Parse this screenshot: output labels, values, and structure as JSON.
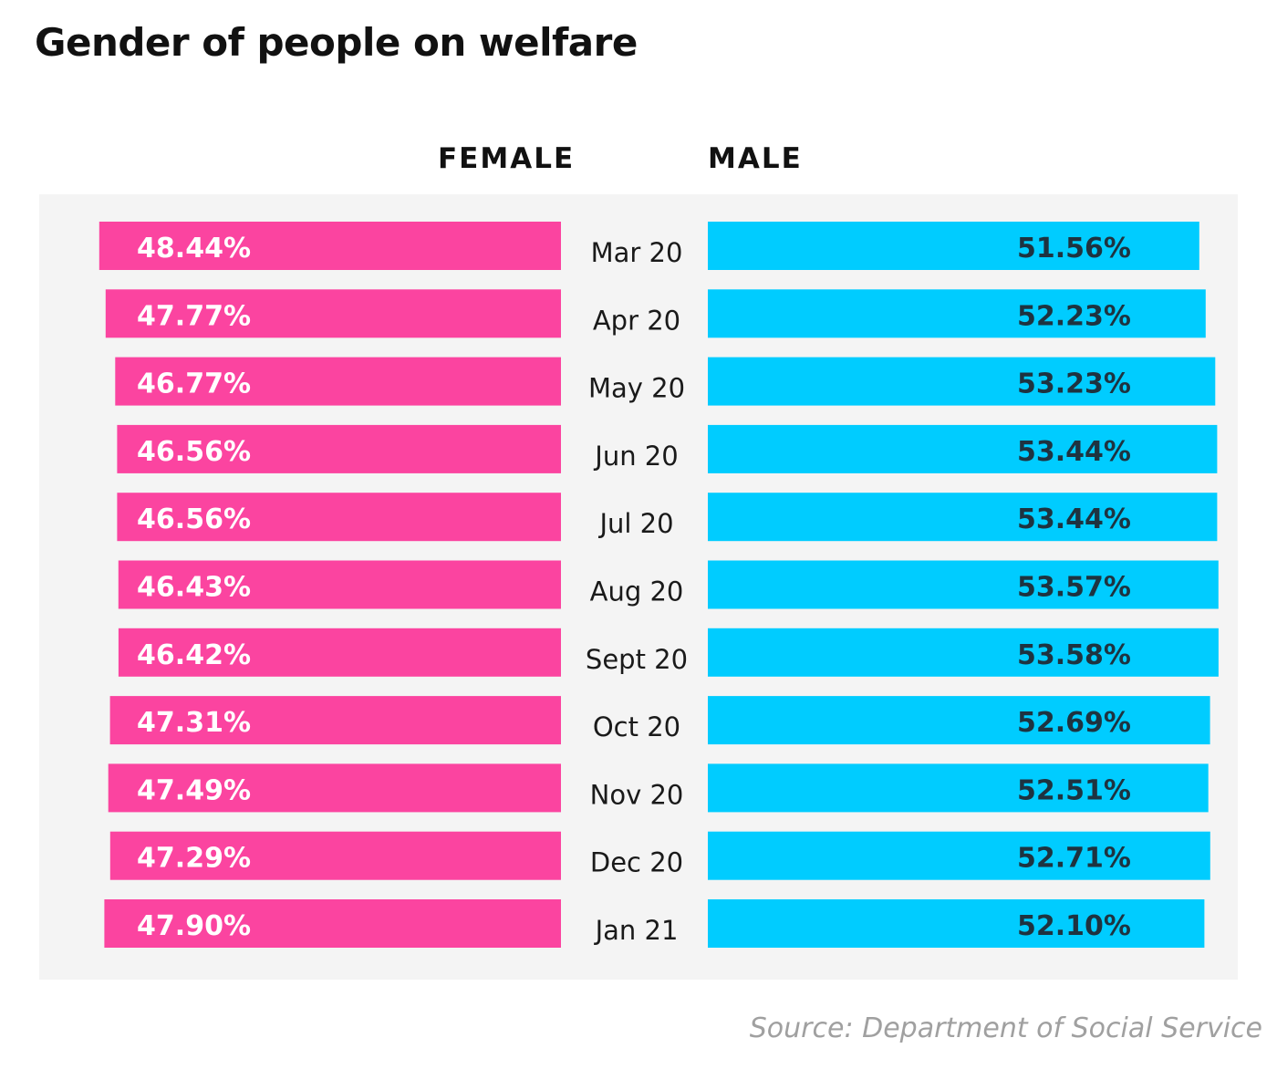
{
  "title": "Gender of people on welfare",
  "source": "Source: Department of Social Service",
  "colors": {
    "female": "#fb44a0",
    "male": "#00ccff",
    "panel_background": "#f4f4f4",
    "female_label_text": "#ffffff",
    "male_label_text": "#1e3340",
    "category_text": "#1a1a1a",
    "source_text": "#a0a0a0"
  },
  "chart_data": {
    "type": "bar",
    "orientation": "horizontal",
    "layout": "diverging",
    "title": "Gender of people on welfare",
    "categories": [
      "Mar 20",
      "Apr 20",
      "May 20",
      "Jun 20",
      "Jul 20",
      "Aug 20",
      "Sept 20",
      "Oct 20",
      "Nov 20",
      "Dec 20",
      "Jan 21"
    ],
    "series": [
      {
        "name": "FEMALE",
        "values": [
          48.44,
          47.77,
          46.77,
          46.56,
          46.56,
          46.43,
          46.42,
          47.31,
          47.49,
          47.29,
          47.9
        ],
        "labels": [
          "48.44%",
          "47.77%",
          "46.77%",
          "46.56%",
          "46.56%",
          "46.43%",
          "46.42%",
          "47.31%",
          "47.49%",
          "47.29%",
          "47.90%"
        ]
      },
      {
        "name": "MALE",
        "values": [
          51.56,
          52.23,
          53.23,
          53.44,
          53.44,
          53.57,
          53.58,
          52.69,
          52.51,
          52.71,
          52.1
        ],
        "labels": [
          "51.56%",
          "52.23%",
          "53.23%",
          "53.44%",
          "53.44%",
          "53.57%",
          "53.58%",
          "52.69%",
          "52.51%",
          "52.71%",
          "52.10%"
        ]
      }
    ],
    "unit": "%",
    "legend_position": "top",
    "grid": false
  }
}
